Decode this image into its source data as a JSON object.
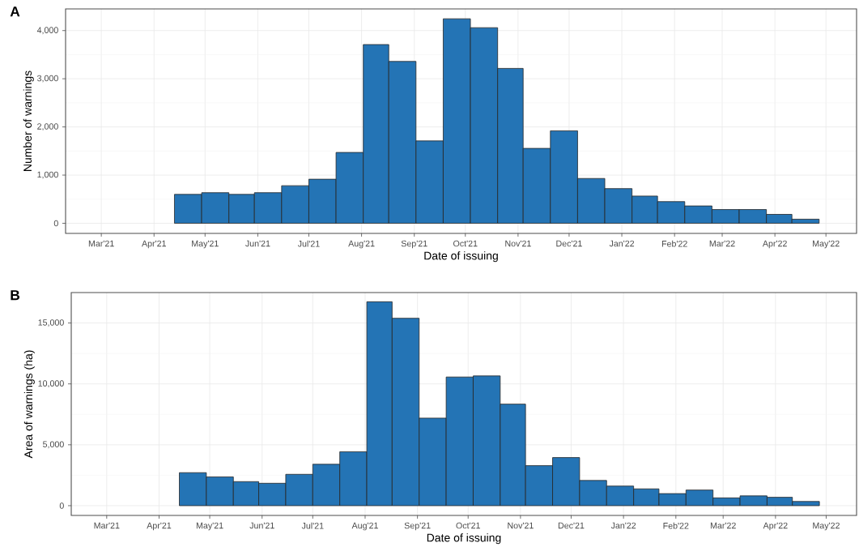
{
  "chart_data": [
    {
      "type": "histogram",
      "title": "A",
      "xlabel": "Date of issuing",
      "ylabel": "Number of warnings",
      "color": "#2474b5",
      "bins": [
        "2021-04-13",
        "2021-04-29",
        "2021-05-15",
        "2021-05-30",
        "2021-06-15",
        "2021-07-01",
        "2021-07-17",
        "2021-08-02",
        "2021-08-17",
        "2021-09-02",
        "2021-09-18",
        "2021-10-04",
        "2021-10-20",
        "2021-11-04",
        "2021-11-20",
        "2021-12-06",
        "2021-12-22",
        "2022-01-07",
        "2022-01-22",
        "2022-02-07",
        "2022-02-23",
        "2022-03-11",
        "2022-03-27",
        "2022-04-11",
        "2022-04-27"
      ],
      "values": [
        600,
        635,
        600,
        635,
        780,
        915,
        1470,
        3710,
        3360,
        1710,
        4245,
        4060,
        3215,
        1555,
        1920,
        930,
        720,
        565,
        450,
        360,
        285,
        285,
        185,
        85
      ],
      "xlim": [
        "2021-02-08",
        "2022-05-19"
      ],
      "xticks": [
        {
          "value": "2021-03-01",
          "label": "Mar'21"
        },
        {
          "value": "2021-04-01",
          "label": "Apr'21"
        },
        {
          "value": "2021-05-01",
          "label": "May'21"
        },
        {
          "value": "2021-06-01",
          "label": "Jun'21"
        },
        {
          "value": "2021-07-01",
          "label": "Jul'21"
        },
        {
          "value": "2021-08-01",
          "label": "Aug'21"
        },
        {
          "value": "2021-09-01",
          "label": "Sep'21"
        },
        {
          "value": "2021-10-01",
          "label": "Oct'21"
        },
        {
          "value": "2021-11-01",
          "label": "Nov'21"
        },
        {
          "value": "2021-12-01",
          "label": "Dec'21"
        },
        {
          "value": "2022-01-01",
          "label": "Jan'22"
        },
        {
          "value": "2022-02-01",
          "label": "Feb'22"
        },
        {
          "value": "2022-03-01",
          "label": "Mar'22"
        },
        {
          "value": "2022-04-01",
          "label": "Apr'22"
        },
        {
          "value": "2022-05-01",
          "label": "May'22"
        }
      ],
      "ylim": [
        -210,
        4450
      ],
      "yticks": [
        0,
        {
          "value": 1000,
          "label": "1,000"
        },
        {
          "value": 2000,
          "label": "2,000"
        },
        {
          "value": 3000,
          "label": "3,000"
        },
        {
          "value": 4000,
          "label": "4,000"
        }
      ],
      "grid": true
    },
    {
      "type": "histogram",
      "title": "B",
      "xlabel": "Date of issuing",
      "ylabel": "Area of warnings (ha)",
      "color": "#2474b5",
      "bins": [
        "2021-04-13",
        "2021-04-29",
        "2021-05-15",
        "2021-05-30",
        "2021-06-15",
        "2021-07-01",
        "2021-07-17",
        "2021-08-02",
        "2021-08-17",
        "2021-09-02",
        "2021-09-18",
        "2021-10-04",
        "2021-10-20",
        "2021-11-04",
        "2021-11-20",
        "2021-12-06",
        "2021-12-22",
        "2022-01-07",
        "2022-01-22",
        "2022-02-07",
        "2022-02-23",
        "2022-03-11",
        "2022-03-27",
        "2022-04-11",
        "2022-04-27"
      ],
      "values": [
        2710,
        2365,
        1975,
        1840,
        2575,
        3400,
        4430,
        16745,
        15390,
        7190,
        10565,
        10655,
        8340,
        3285,
        3950,
        2070,
        1610,
        1380,
        990,
        1285,
        640,
        805,
        690,
        345
      ],
      "xlim": [
        "2021-02-08",
        "2022-05-19"
      ],
      "xticks": [
        {
          "value": "2021-03-01",
          "label": "Mar'21"
        },
        {
          "value": "2021-04-01",
          "label": "Apr'21"
        },
        {
          "value": "2021-05-01",
          "label": "May'21"
        },
        {
          "value": "2021-06-01",
          "label": "Jun'21"
        },
        {
          "value": "2021-07-01",
          "label": "Jul'21"
        },
        {
          "value": "2021-08-01",
          "label": "Aug'21"
        },
        {
          "value": "2021-09-01",
          "label": "Sep'21"
        },
        {
          "value": "2021-10-01",
          "label": "Oct'21"
        },
        {
          "value": "2021-11-01",
          "label": "Nov'21"
        },
        {
          "value": "2021-12-01",
          "label": "Dec'21"
        },
        {
          "value": "2022-01-01",
          "label": "Jan'22"
        },
        {
          "value": "2022-02-01",
          "label": "Feb'22"
        },
        {
          "value": "2022-03-01",
          "label": "Mar'22"
        },
        {
          "value": "2022-04-01",
          "label": "Apr'22"
        },
        {
          "value": "2022-05-01",
          "label": "May'22"
        }
      ],
      "ylim": [
        -800,
        17500
      ],
      "yticks": [
        0,
        {
          "value": 5000,
          "label": "5,000"
        },
        {
          "value": 10000,
          "label": "10,000"
        },
        {
          "value": 15000,
          "label": "15,000"
        }
      ],
      "grid": true
    }
  ]
}
